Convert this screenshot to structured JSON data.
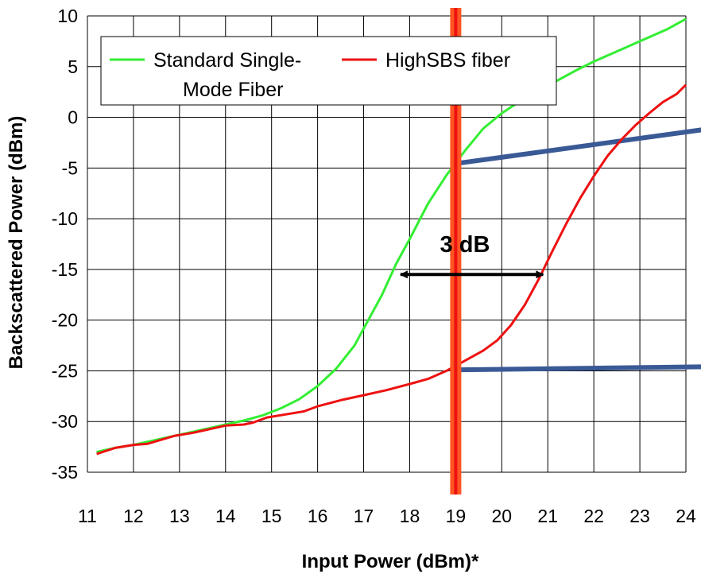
{
  "chart_data": {
    "type": "line",
    "title": "",
    "xlabel": "Input Power (dBm)*",
    "ylabel": "Backscattered Power (dBm)",
    "xlim": [
      11,
      24
    ],
    "ylim": [
      -35,
      10
    ],
    "xticks": [
      11,
      12,
      13,
      14,
      15,
      16,
      17,
      18,
      19,
      20,
      21,
      22,
      23,
      24
    ],
    "yticks": [
      10,
      5,
      0,
      -5,
      -10,
      -15,
      -20,
      -25,
      -30,
      -35
    ],
    "grid": true,
    "legend": {
      "placement": "top-left"
    },
    "series": [
      {
        "name": "Standard Single-Mode Fiber",
        "color": "#33ee33",
        "points": [
          [
            11.2,
            -33
          ],
          [
            11.6,
            -32.6
          ],
          [
            12,
            -32.3
          ],
          [
            12.4,
            -31.9
          ],
          [
            12.8,
            -31.5
          ],
          [
            13.2,
            -31.1
          ],
          [
            13.6,
            -30.7
          ],
          [
            14,
            -30.3
          ],
          [
            14.4,
            -29.9
          ],
          [
            14.8,
            -29.4
          ],
          [
            15.2,
            -28.7
          ],
          [
            15.6,
            -27.8
          ],
          [
            16,
            -26.5
          ],
          [
            16.4,
            -24.8
          ],
          [
            16.8,
            -22.5
          ],
          [
            17.1,
            -20
          ],
          [
            17.4,
            -17.5
          ],
          [
            17.7,
            -14.5
          ],
          [
            18,
            -12
          ],
          [
            18.4,
            -8.5
          ],
          [
            18.8,
            -5.7
          ],
          [
            19.2,
            -3.3
          ],
          [
            19.6,
            -1.1
          ],
          [
            20,
            0.4
          ],
          [
            20.4,
            1.6
          ],
          [
            20.8,
            2.6
          ],
          [
            21.2,
            3.6
          ],
          [
            21.6,
            4.6
          ],
          [
            22,
            5.5
          ],
          [
            22.4,
            6.3
          ],
          [
            22.8,
            7.1
          ],
          [
            23.2,
            7.9
          ],
          [
            23.6,
            8.7
          ],
          [
            24,
            9.7
          ]
        ]
      },
      {
        "name": "HighSBS fiber",
        "color": "#ee1111",
        "points": [
          [
            11.2,
            -33.2
          ],
          [
            11.6,
            -32.6
          ],
          [
            12,
            -32.3
          ],
          [
            12.3,
            -32.2
          ],
          [
            12.6,
            -31.8
          ],
          [
            12.9,
            -31.4
          ],
          [
            13.3,
            -31.1
          ],
          [
            13.7,
            -30.7
          ],
          [
            14,
            -30.4
          ],
          [
            14.4,
            -30.3
          ],
          [
            14.6,
            -30.1
          ],
          [
            14.9,
            -29.6
          ],
          [
            15.3,
            -29.3
          ],
          [
            15.7,
            -29
          ],
          [
            16,
            -28.5
          ],
          [
            16.5,
            -27.9
          ],
          [
            17,
            -27.4
          ],
          [
            17.5,
            -26.9
          ],
          [
            18,
            -26.3
          ],
          [
            18.4,
            -25.8
          ],
          [
            18.8,
            -25
          ],
          [
            19.2,
            -24
          ],
          [
            19.6,
            -23
          ],
          [
            19.9,
            -22
          ],
          [
            20.2,
            -20.5
          ],
          [
            20.5,
            -18.5
          ],
          [
            20.8,
            -16
          ],
          [
            21.1,
            -13.2
          ],
          [
            21.4,
            -10.5
          ],
          [
            21.7,
            -8
          ],
          [
            22,
            -5.8
          ],
          [
            22.3,
            -3.8
          ],
          [
            22.6,
            -2.2
          ],
          [
            22.9,
            -0.8
          ],
          [
            23.2,
            0.4
          ],
          [
            23.5,
            1.5
          ],
          [
            23.8,
            2.3
          ],
          [
            24,
            3.2
          ]
        ]
      }
    ],
    "vertical_marker": {
      "x": 19,
      "color": "#ff5522"
    },
    "slope_lines": [
      {
        "x1": 19.1,
        "y1": -4.5,
        "x2": 24.4,
        "y2": -1.2,
        "color": "#3a5a96"
      },
      {
        "x1": 19.1,
        "y1": -24.9,
        "x2": 24.4,
        "y2": -24.6,
        "color": "#3a5a96"
      }
    ],
    "annotation": {
      "text": "3 dB",
      "arrow_from": [
        17.8,
        -15.5
      ],
      "arrow_to": [
        20.9,
        -15.5
      ]
    },
    "legend_lines": {
      "standard": [
        "Standard Single-",
        "Mode Fiber"
      ],
      "highsbs": "HighSBS fiber"
    }
  }
}
